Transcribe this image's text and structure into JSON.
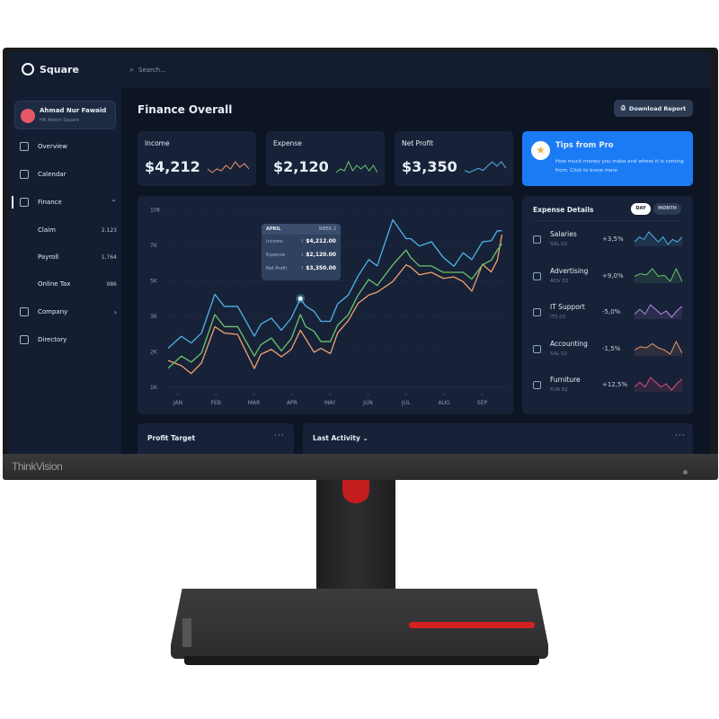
{
  "device": {
    "brand": "ThinkVision",
    "base_logo": "Lenovo"
  },
  "app": {
    "name": "Square",
    "search_placeholder": "Search..."
  },
  "user": {
    "name": "Ahmad Nur Fawaid",
    "role": "HR Admin Square"
  },
  "sidebar": {
    "items": [
      {
        "label": "Overview",
        "icon": "grid-icon"
      },
      {
        "label": "Calendar",
        "icon": "calendar-icon"
      },
      {
        "label": "Finance",
        "icon": "dollar-book-icon",
        "active": true,
        "expanded": true
      },
      {
        "label": "Claim",
        "count": "2,123"
      },
      {
        "label": "Payroll",
        "count": "1,764"
      },
      {
        "label": "Online Tax",
        "count": "986"
      },
      {
        "label": "Company",
        "icon": "briefcase-icon"
      },
      {
        "label": "Directory",
        "icon": "contact-book-icon"
      }
    ]
  },
  "page": {
    "title": "Finance Overall",
    "download_label": "Download Report"
  },
  "kpis": [
    {
      "label": "Income",
      "value": "$4,212",
      "color": "#e8946a",
      "sparkline": [
        3,
        2,
        3,
        2.5,
        4,
        3,
        5,
        3.5,
        4.5,
        3
      ]
    },
    {
      "label": "Expense",
      "value": "$2,120",
      "color": "#6cc46c",
      "sparkline": [
        2,
        3,
        2.5,
        5,
        2.5,
        4,
        3,
        4,
        2.5,
        4,
        2
      ]
    },
    {
      "label": "Net Profit",
      "value": "$3,350",
      "color": "#4fb3e8",
      "sparkline": [
        2,
        1.5,
        2,
        2.5,
        2,
        3,
        4,
        3,
        4,
        2.5
      ]
    }
  ],
  "tips": {
    "title": "Tips from Pro",
    "body": "How much money you make and where it is coming from. Click to know more"
  },
  "expense_details": {
    "title": "Expense Details",
    "toggle": [
      {
        "label": "DAY",
        "selected": true
      },
      {
        "label": "MONTH",
        "selected": false
      }
    ],
    "rows": [
      {
        "name": "Salaries",
        "code": "SAL 02",
        "change": "+3,5%",
        "color": "#4fb3e8",
        "icon": "dollar-icon"
      },
      {
        "name": "Advertising",
        "code": "ADV 02",
        "change": "+9,0%",
        "color": "#6cc46c",
        "icon": "image-icon"
      },
      {
        "name": "IT Support",
        "code": "ITS 02",
        "change": "-5,0%",
        "color": "#b48be0",
        "icon": "gear-icon"
      },
      {
        "name": "Accounting",
        "code": "SAL 02",
        "change": "-1,5%",
        "color": "#e8946a",
        "icon": "table-icon"
      },
      {
        "name": "Furniture",
        "code": "FUR 02",
        "change": "+12,5%",
        "color": "#e0507a",
        "icon": "home-icon"
      }
    ]
  },
  "tooltip": {
    "month": "APRIL",
    "week": "WEEK 2",
    "rows": [
      {
        "label": "Income",
        "value": "$4,212.00",
        "arrow": "↑",
        "color": "#6cc46c"
      },
      {
        "label": "Expense",
        "value": "$2,120.00",
        "arrow": "↓",
        "color": "#e8946a"
      },
      {
        "label": "Net Profit",
        "value": "$3,350.00",
        "arrow": "↑",
        "color": "#4fb3e8"
      }
    ]
  },
  "bottom": {
    "profit_target": "Profit Target",
    "last_activity": "Last Activity"
  },
  "chart_data": {
    "type": "line",
    "title": "",
    "xlabel": "",
    "ylabel": "",
    "x_tick_labels": [
      "JAN",
      "FEB",
      "MAR",
      "APR",
      "MAY",
      "JUN",
      "JUL",
      "AUG",
      "SEP"
    ],
    "y_tick_labels": [
      "1K",
      "2K",
      "3K",
      "5K",
      "7K",
      "10K"
    ],
    "y_ticks": [
      1,
      2,
      3,
      5,
      7,
      10
    ],
    "y_unit": "K",
    "grid": true,
    "x": [
      0.74,
      1.09,
      1.35,
      1.62,
      1.97,
      2.22,
      2.57,
      3.01,
      3.18,
      3.46,
      3.72,
      3.98,
      4.22,
      4.36,
      4.58,
      4.76,
      5.01,
      5.2,
      5.48,
      5.74,
      6.02,
      6.24,
      6.65,
      7.0,
      7.12,
      7.35,
      7.67,
      7.98,
      8.26,
      8.5,
      8.73,
      9.01,
      9.24,
      9.4,
      9.52
    ],
    "series": [
      {
        "color": "#4fb3e8",
        "values": [
          2.1,
          2.44,
          2.25,
          2.53,
          4.24,
          3.56,
          3.56,
          2.44,
          2.78,
          2.95,
          2.61,
          2.95,
          4.0,
          3.58,
          3.28,
          2.86,
          2.86,
          3.7,
          4.2,
          5.28,
          6.2,
          5.84,
          9.16,
          7.57,
          7.57,
          6.96,
          7.3,
          6.32,
          5.82,
          6.58,
          6.2,
          7.3,
          7.39,
          8.23,
          8.23
        ]
      },
      {
        "color": "#6cc46c",
        "values": [
          1.54,
          1.88,
          1.71,
          1.97,
          3.1,
          2.71,
          2.71,
          1.88,
          2.2,
          2.39,
          2.03,
          2.37,
          3.1,
          2.71,
          2.58,
          2.29,
          2.29,
          2.75,
          3.1,
          4.2,
          5.08,
          4.74,
          5.9,
          6.74,
          6.32,
          5.84,
          5.84,
          5.48,
          5.48,
          5.48,
          5.1,
          5.9,
          6.16,
          6.74,
          7.12
        ]
      },
      {
        "color": "#f0a070",
        "values": [
          1.76,
          1.61,
          1.39,
          1.69,
          2.71,
          2.53,
          2.49,
          1.53,
          1.93,
          2.07,
          1.86,
          2.07,
          2.61,
          2.37,
          1.99,
          2.1,
          1.95,
          2.53,
          2.88,
          3.74,
          4.2,
          4.36,
          4.96,
          5.9,
          5.78,
          5.34,
          5.48,
          5.14,
          5.22,
          4.96,
          4.42,
          5.94,
          5.5,
          6.16,
          7.9
        ]
      }
    ],
    "highlight": {
      "x": 4.22,
      "value": 4.0
    }
  }
}
